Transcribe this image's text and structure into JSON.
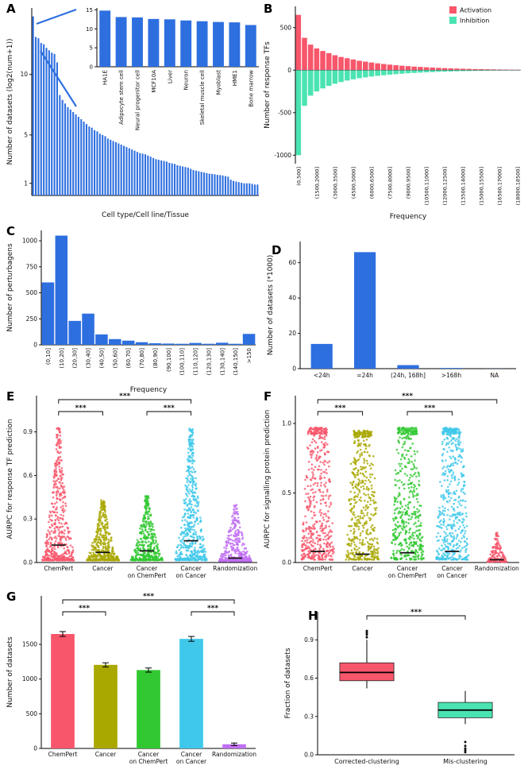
{
  "figure_title": "",
  "chart_data": [
    {
      "id": "A-main",
      "panel_label": "A",
      "type": "bar",
      "xlabel": "Cell type/Cell line/Tissue",
      "ylabel": "Number of datasets (log2(num+1))",
      "ylim": [
        0,
        15.5
      ],
      "yticks": [
        1,
        5,
        10
      ],
      "bar_color": "#2E6FE0",
      "categories": [],
      "values": [
        14.8,
        13.1,
        13.0,
        12.6,
        12.5,
        12.2,
        12.0,
        11.8,
        11.7,
        11.0,
        8.3,
        7.9,
        7.6,
        7.3,
        7.1,
        6.9,
        6.7,
        6.5,
        6.3,
        6.1,
        5.9,
        5.7,
        5.6,
        5.4,
        5.3,
        5.1,
        5.0,
        4.9,
        4.7,
        4.6,
        4.5,
        4.4,
        4.3,
        4.2,
        4.1,
        4.0,
        3.9,
        3.8,
        3.7,
        3.6,
        3.5,
        3.45,
        3.4,
        3.3,
        3.2,
        3.1,
        3.0,
        2.95,
        2.9,
        2.85,
        2.8,
        2.7,
        2.65,
        2.6,
        2.5,
        2.45,
        2.4,
        2.35,
        2.3,
        2.2,
        2.1,
        2.05,
        2.0,
        1.95,
        1.9,
        1.85,
        1.8,
        1.78,
        1.75,
        1.7,
        1.68,
        1.65,
        1.6,
        1.55,
        1.3,
        1.2,
        1.15,
        1.1,
        1.05,
        1.0,
        1.0,
        1.0,
        0.95,
        0.9,
        0.9
      ]
    },
    {
      "id": "A-inset",
      "panel_label": "",
      "type": "bar",
      "xlabel": "",
      "ylabel": "",
      "ylim": [
        0,
        15.5
      ],
      "yticks": [
        0,
        5,
        10,
        15
      ],
      "bar_color": "#2E6FE0",
      "categories": [
        "HA1E",
        "Adipocyte stem cell",
        "Neural progenitor cell",
        "MCF10A",
        "Liver",
        "Neuron",
        "Skeletal muscle cell",
        "Myoblast",
        "HME1",
        "Bone marrow"
      ],
      "values": [
        14.8,
        13.1,
        13.0,
        12.6,
        12.5,
        12.2,
        12.0,
        11.8,
        11.7,
        11.0
      ]
    },
    {
      "id": "B",
      "panel_label": "B",
      "type": "diverging-bar",
      "xlabel": "Frequency",
      "ylabel": "Number of response TFs",
      "ylim": [
        -1100,
        750
      ],
      "yticks": [
        500,
        0,
        -500,
        -1000
      ],
      "n_bins": 37,
      "bins_per_label": 3,
      "bin_labels": [
        "(0,500]",
        "(1500,2000]",
        "(3000,3500]",
        "(4500,5000]",
        "(6000,6500]",
        "(7500,8000]",
        "(9000,9500]",
        "(10500,11000]",
        "(12000,12500]",
        "(13500,14000]",
        "(15000,15500]",
        "(16500,17000]",
        "(18000,18500]"
      ],
      "series": [
        {
          "name": "Activation",
          "color": "#F8566B",
          "values": [
            650,
            380,
            300,
            255,
            225,
            200,
            175,
            155,
            140,
            125,
            110,
            100,
            90,
            80,
            72,
            65,
            58,
            52,
            47,
            42,
            38,
            34,
            30,
            27,
            24,
            21,
            19,
            17,
            15,
            13,
            12,
            10,
            9,
            8,
            7,
            6,
            5
          ]
        },
        {
          "name": "Inhibition",
          "color": "#4AE3B2",
          "values": [
            -1000,
            -420,
            -300,
            -250,
            -215,
            -185,
            -160,
            -140,
            -122,
            -108,
            -95,
            -85,
            -75,
            -67,
            -60,
            -53,
            -47,
            -42,
            -37,
            -33,
            -29,
            -26,
            -23,
            -20,
            -18,
            -16,
            -14,
            -12,
            -11,
            -9,
            -8,
            -7,
            -6,
            -5,
            -5,
            -4,
            -4
          ]
        }
      ]
    },
    {
      "id": "C",
      "panel_label": "C",
      "type": "bar",
      "xlabel": "Frequency",
      "ylabel": "Number of perturbagens",
      "ylim": [
        0,
        1100
      ],
      "yticks": [
        0,
        250,
        500,
        750,
        1000
      ],
      "bar_color": "#2E6FE0",
      "categories": [
        "(0,10]",
        "(10,20]",
        "(20,30]",
        "(30,40]",
        "(40,50]",
        "(50,60]",
        "(60,70]",
        "(70,80]",
        "(80,90]",
        "(90,100]",
        "(100,110]",
        "(110,120]",
        "(120,130]",
        "(130,140]",
        "(140,150]",
        ">150"
      ],
      "values": [
        600,
        1050,
        230,
        300,
        100,
        55,
        40,
        25,
        15,
        12,
        10,
        18,
        10,
        20,
        10,
        105
      ]
    },
    {
      "id": "D",
      "panel_label": "D",
      "type": "bar",
      "xlabel": "",
      "ylabel": "Number of datasets (*1000)",
      "ylim": [
        0,
        72
      ],
      "yticks": [
        0,
        20,
        40,
        60
      ],
      "bar_color": "#2E6FE0",
      "categories": [
        "<24h",
        "=24h",
        "(24h, 168h]",
        ">168h",
        "NA"
      ],
      "values": [
        14,
        66,
        2,
        0.4,
        0.05
      ]
    },
    {
      "id": "E",
      "panel_label": "E",
      "type": "jitter",
      "xlabel": "",
      "ylabel": "AURPC for response TF prediction",
      "ylim": [
        0,
        1.15
      ],
      "yticks": [
        0.0,
        0.3,
        0.6,
        0.9
      ],
      "groups": [
        {
          "label": "ChemPert",
          "color": "#F8566B",
          "min": 0.015,
          "max": 0.93,
          "mean": 0.12,
          "n": 520,
          "exp": 3.0,
          "shape": "taper"
        },
        {
          "label": "Cancer",
          "color": "#A9A800",
          "min": 0.015,
          "max": 0.43,
          "mean": 0.07,
          "n": 430,
          "exp": 2.6,
          "shape": "taper"
        },
        {
          "label": "Cancer\non ChemPert",
          "color": "#31C831",
          "min": 0.015,
          "max": 0.46,
          "mean": 0.08,
          "n": 430,
          "exp": 2.6,
          "shape": "taper"
        },
        {
          "label": "Cancer\non Cancer",
          "color": "#3FC8EA",
          "min": 0.015,
          "max": 0.93,
          "mean": 0.15,
          "n": 520,
          "exp": 2.3,
          "shape": "taper"
        },
        {
          "label": "Randomization",
          "color": "#C06FF2",
          "min": 0.01,
          "max": 0.4,
          "mean": 0.03,
          "n": 400,
          "exp": 3.4,
          "shape": "taper"
        }
      ],
      "significance": [
        {
          "a": 0,
          "b": 3,
          "lvl": 0,
          "label": "***"
        },
        {
          "a": 0,
          "b": 1,
          "lvl": 1,
          "label": "***"
        },
        {
          "a": 2,
          "b": 3,
          "lvl": 1,
          "label": "***"
        }
      ]
    },
    {
      "id": "F",
      "panel_label": "F",
      "type": "jitter",
      "xlabel": "",
      "ylabel": "AURPC for signalling protein prediction",
      "ylim": [
        0,
        1.2
      ],
      "yticks": [
        0.0,
        0.5,
        1.0
      ],
      "groups": [
        {
          "label": "ChemPert",
          "color": "#F8566B",
          "min": 0.02,
          "max": 0.97,
          "mean": 0.08,
          "n": 520,
          "exp": 1.7,
          "shape": "rod",
          "capFrac": 0.12
        },
        {
          "label": "Cancer",
          "color": "#A9A800",
          "min": 0.02,
          "max": 0.95,
          "mean": 0.06,
          "n": 500,
          "exp": 1.7,
          "shape": "rod",
          "capFrac": 0.12
        },
        {
          "label": "Cancer\non ChemPert",
          "color": "#31C831",
          "min": 0.02,
          "max": 0.97,
          "mean": 0.07,
          "n": 500,
          "exp": 1.7,
          "shape": "rod",
          "capFrac": 0.12
        },
        {
          "label": "Cancer\non Cancer",
          "color": "#3FC8EA",
          "min": 0.02,
          "max": 0.97,
          "mean": 0.08,
          "n": 520,
          "exp": 1.7,
          "shape": "rod",
          "capFrac": 0.12
        },
        {
          "label": "Randomization",
          "color": "#F8566B",
          "min": 0.005,
          "max": 0.22,
          "mean": 0.02,
          "n": 150,
          "exp": 2.2,
          "shape": "taper",
          "widthFrac": 0.45
        }
      ],
      "significance": [
        {
          "a": 0,
          "b": 4,
          "lvl": 0,
          "label": "***"
        },
        {
          "a": 0,
          "b": 1,
          "lvl": 1,
          "label": "***"
        },
        {
          "a": 2,
          "b": 3,
          "lvl": 1,
          "label": "***"
        }
      ]
    },
    {
      "id": "G",
      "panel_label": "G",
      "type": "bar",
      "xlabel": "",
      "ylabel": "Number of datasets",
      "ylim": [
        0,
        2200
      ],
      "yticks": [
        0,
        500,
        1000,
        1500
      ],
      "categories": [
        "ChemPert",
        "Cancer",
        "Cancer\non ChemPert",
        "Cancer\non Cancer",
        "Randomization"
      ],
      "values": [
        1650,
        1205,
        1130,
        1580,
        60
      ],
      "errors": [
        35,
        30,
        30,
        35,
        18
      ],
      "colors": [
        "#F8566B",
        "#A9A800",
        "#31C831",
        "#3FC8EA",
        "#C06FF2"
      ],
      "significance": [
        {
          "a": 0,
          "b": 4,
          "lvl": 0,
          "label": "***"
        },
        {
          "a": 0,
          "b": 1,
          "lvl": 1,
          "label": "***"
        },
        {
          "a": 3,
          "b": 4,
          "lvl": 1,
          "label": "***"
        }
      ]
    },
    {
      "id": "H",
      "panel_label": "H",
      "type": "box",
      "xlabel": "",
      "ylabel": "Fraction of datasets",
      "ylim": [
        0,
        1.12
      ],
      "yticks": [
        0.0,
        0.3,
        0.6,
        0.9
      ],
      "groups": [
        {
          "label": "Corrected-clustering",
          "color": "#F8566B",
          "q1": 0.58,
          "median": 0.645,
          "q3": 0.72,
          "whisker_low": 0.52,
          "whisker_high": 0.9,
          "outliers": [
            0.92,
            0.94,
            0.955,
            0.97
          ]
        },
        {
          "label": "Mis-clustering",
          "color": "#4AE3B2",
          "q1": 0.29,
          "median": 0.35,
          "q3": 0.41,
          "whisker_low": 0.24,
          "whisker_high": 0.5,
          "outliers": [
            0.02,
            0.035,
            0.05,
            0.07,
            0.1
          ]
        }
      ],
      "significance": [
        {
          "a": 0,
          "b": 1,
          "lvl": 0,
          "label": "***"
        }
      ]
    }
  ]
}
